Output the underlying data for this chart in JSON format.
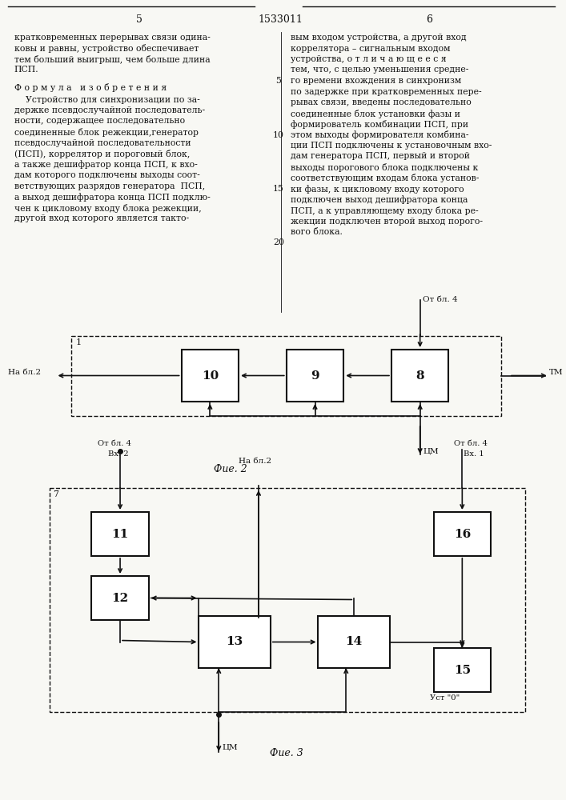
{
  "title_number": "1533011",
  "page_left": "5",
  "page_right": "6",
  "bg_color": "#f8f8f4",
  "left_col_text": [
    "кратковременных перерывах связи одина-",
    "ковы и равны, устройство обеспечивает",
    "тем больший выигрыш, чем больше длина",
    "ПСП."
  ],
  "formula_header": "Ф о р м у л а   и з о б р е т е н и я",
  "left_body_text": [
    "    Устройство для синхронизации по за-",
    "держке псевдослучайной последователь-",
    "ности, содержащее последовательно",
    "соединенные блок режекции,генератор",
    "псевдослучайной последовательности",
    "(ПСП), коррелятор и пороговый блок,",
    "а также дешифратор конца ПСП, к вхо-",
    "дам которого подключены выходы соот-",
    "ветствующих разрядов генератора  ПСП,",
    "а выход дешифратора конца ПСП подклю-",
    "чен к цикловому входу блока режекции,",
    "другой вход которого является такто-"
  ],
  "right_col_text": [
    "вым входом устройства, а другой вход",
    "коррелятора – сигнальным входом",
    "устройства, о т л и ч а ю щ е е с я",
    "тем, что, с целью уменьшения средне-",
    "го времени вхождения в синхронизм",
    "по задержке при кратковременных пере-",
    "рывах связи, введены последовательно",
    "соединенные блок установки фазы и",
    "формирователь комбинации ПСП, при",
    "этом выходы формирователя комбина-",
    "ции ПСП подключены к установочным вхо-",
    "дам генератора ПСП, первый и второй",
    "выходы порогового блока подключены к",
    "соответствующим входам блока установ-",
    "ки фазы, к цикловому входу которого",
    "подключен выход дешифратора конца",
    "ПСП, а к управляющему входу блока ре-",
    "жекции подключен второй выход порого-",
    "вого блока."
  ],
  "line_numbers": [
    "5",
    "10",
    "15",
    "20"
  ],
  "fig2_label": "Фие. 2",
  "fig3_label": "Фие. 3"
}
